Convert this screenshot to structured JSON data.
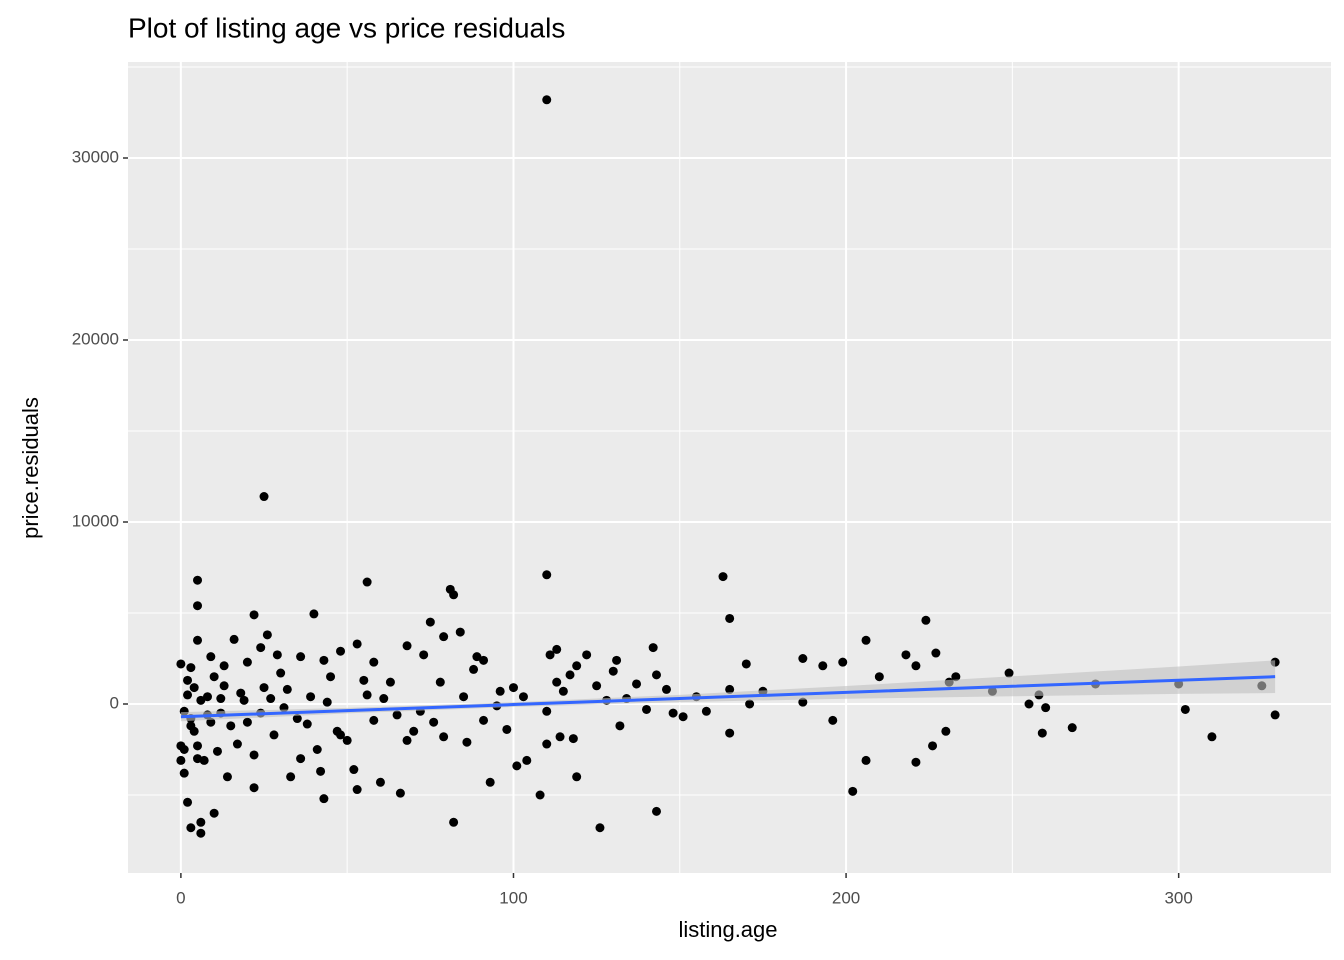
{
  "chart_data": {
    "type": "scatter",
    "title": "Plot of listing age vs price residuals",
    "x_label": "listing.age",
    "y_label": "price.residuals",
    "xlim": [
      -15.9,
      345.8
    ],
    "ylim": [
      -9286,
      35275
    ],
    "xticks": [
      0,
      100,
      200,
      300
    ],
    "yticks": [
      0,
      10000,
      20000,
      30000
    ],
    "minor_xticks": [
      50,
      150,
      250
    ],
    "minor_yticks": [
      -5000,
      5000,
      15000,
      25000,
      35000
    ],
    "grid": true,
    "background": "#ebebeb",
    "points": {
      "color": "#000000",
      "x": [
        110,
        25,
        5,
        110,
        163,
        56,
        81,
        82,
        5,
        22,
        40,
        165,
        224,
        75,
        84,
        79,
        26,
        5,
        16,
        142,
        206,
        24,
        113,
        111,
        48,
        53,
        68,
        218,
        227,
        187,
        122,
        89,
        91,
        0,
        3,
        9,
        13,
        20,
        29,
        36,
        43,
        58,
        131,
        143,
        170,
        193,
        199,
        221,
        249,
        233,
        210,
        258,
        260,
        275,
        300,
        302,
        310,
        325,
        329,
        329,
        268,
        259,
        255,
        244,
        231,
        226,
        230,
        221,
        206,
        202,
        196,
        187,
        175,
        171,
        165,
        165,
        158,
        155,
        151,
        146,
        143,
        140,
        134,
        130,
        132,
        126,
        119,
        118,
        114,
        110,
        108,
        110,
        113,
        117,
        119,
        125,
        101,
        104,
        98,
        93,
        91,
        96,
        100,
        103,
        88,
        86,
        82,
        79,
        76,
        72,
        70,
        66,
        68,
        63,
        60,
        58,
        56,
        53,
        52,
        50,
        47,
        45,
        43,
        42,
        41,
        38,
        36,
        33,
        31,
        30,
        28,
        25,
        22,
        22,
        20,
        18,
        17,
        14,
        13,
        12,
        11,
        10,
        9,
        8,
        7,
        6,
        6,
        5,
        5,
        4,
        4,
        3,
        3,
        2,
        2,
        1,
        1,
        1,
        0,
        0,
        2,
        3,
        6,
        8,
        10,
        12,
        15,
        19,
        24,
        27,
        32,
        35,
        39,
        44,
        48,
        55,
        61,
        65,
        73,
        78,
        85,
        95,
        115,
        128,
        137,
        148
      ],
      "y": [
        33200,
        11400,
        6800,
        7100,
        7000,
        6700,
        6300,
        6000,
        5400,
        4900,
        4950,
        4700,
        4600,
        4500,
        3950,
        3700,
        3800,
        3500,
        3550,
        3100,
        3500,
        3100,
        3000,
        2700,
        2900,
        3300,
        3200,
        2700,
        2800,
        2500,
        2700,
        2600,
        2400,
        2200,
        2000,
        2600,
        2100,
        2300,
        2700,
        2600,
        2400,
        2300,
        2400,
        1600,
        2200,
        2100,
        2300,
        2100,
        1700,
        1500,
        1500,
        500,
        -200,
        1100,
        1100,
        -300,
        -1800,
        1000,
        2300,
        -600,
        -1300,
        -1600,
        0,
        700,
        1200,
        -2300,
        -1500,
        -3200,
        -3100,
        -4800,
        -900,
        100,
        700,
        0,
        -1600,
        800,
        -400,
        400,
        -700,
        800,
        -5900,
        -300,
        300,
        1800,
        -1200,
        -6800,
        -4000,
        -1900,
        -1800,
        -2200,
        -5000,
        -400,
        1200,
        1600,
        2100,
        1000,
        -3400,
        -3100,
        -1400,
        -4300,
        -900,
        700,
        900,
        400,
        1900,
        -2100,
        -6500,
        -1800,
        -1000,
        -400,
        -1500,
        -4900,
        -2000,
        1200,
        -4300,
        -900,
        500,
        -4700,
        -3600,
        -2000,
        -1500,
        1500,
        -5200,
        -3700,
        -2500,
        -1100,
        -3000,
        -4000,
        -200,
        1700,
        -1700,
        900,
        -4600,
        -2800,
        -1000,
        600,
        -2200,
        -4000,
        1000,
        -500,
        -2600,
        -6000,
        -1000,
        400,
        -3100,
        -7100,
        -6500,
        -3000,
        -2300,
        -1500,
        900,
        -6800,
        -800,
        -5400,
        1300,
        -3800,
        -2500,
        -400,
        -2300,
        -3100,
        500,
        -1200,
        200,
        -600,
        1500,
        300,
        -1200,
        200,
        -500,
        300,
        800,
        -800,
        400,
        100,
        -1700,
        1300,
        300,
        -600,
        2700,
        1200,
        400,
        -100,
        700,
        200,
        1100,
        -500
      ]
    },
    "fit": {
      "color": "#3366ff",
      "band_color": "#bfbfbf",
      "x": [
        0,
        50,
        100,
        150,
        200,
        250,
        300,
        329
      ],
      "y": [
        -700,
        -366,
        -31,
        304,
        638,
        973,
        1307,
        1501
      ],
      "lower": [
        -950,
        -516,
        -161,
        104,
        288,
        423,
        557,
        601
      ],
      "upper": [
        -450,
        -216,
        99,
        504,
        988,
        1523,
        2057,
        2401
      ]
    }
  }
}
